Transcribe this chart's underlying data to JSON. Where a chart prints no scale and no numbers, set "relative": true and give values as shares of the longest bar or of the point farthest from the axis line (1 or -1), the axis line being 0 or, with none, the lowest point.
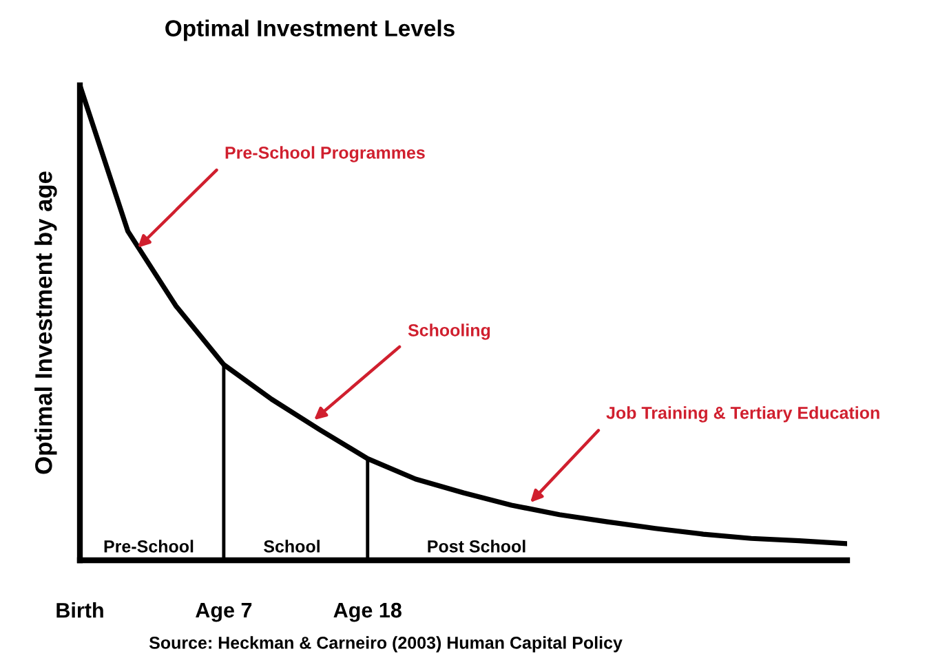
{
  "chart_data": {
    "type": "line",
    "title": "Optimal Investment Levels",
    "ylabel": "Optimal Investment by age",
    "relative": true,
    "categories": [
      "Birth",
      null,
      null,
      "Age 7",
      null,
      null,
      "Age 18",
      null,
      null,
      null,
      null,
      null,
      null,
      null,
      null,
      null,
      null
    ],
    "series": [
      {
        "color": "#000000",
        "values": [
          1.0,
          0.693,
          0.536,
          0.412,
          0.339,
          0.275,
          0.214,
          0.171,
          0.142,
          0.116,
          0.096,
          0.081,
          0.067,
          0.055,
          0.046,
          0.041,
          0.035
        ]
      },
      {
        "type": "bar",
        "color": "#000000",
        "values": [
          null,
          null,
          null,
          0.412,
          null,
          null,
          0.214,
          null,
          null,
          null,
          null,
          null,
          null,
          null,
          null,
          null,
          null
        ]
      }
    ],
    "annotations": [
      "Pre-School Programmes",
      "Schooling",
      "Job Training & Tertiary Education",
      "Pre-School",
      "School",
      "Post School",
      "Source: Heckman & Carneiro (2003) Human Capital Policy"
    ],
    "grid": false,
    "legend": false
  }
}
